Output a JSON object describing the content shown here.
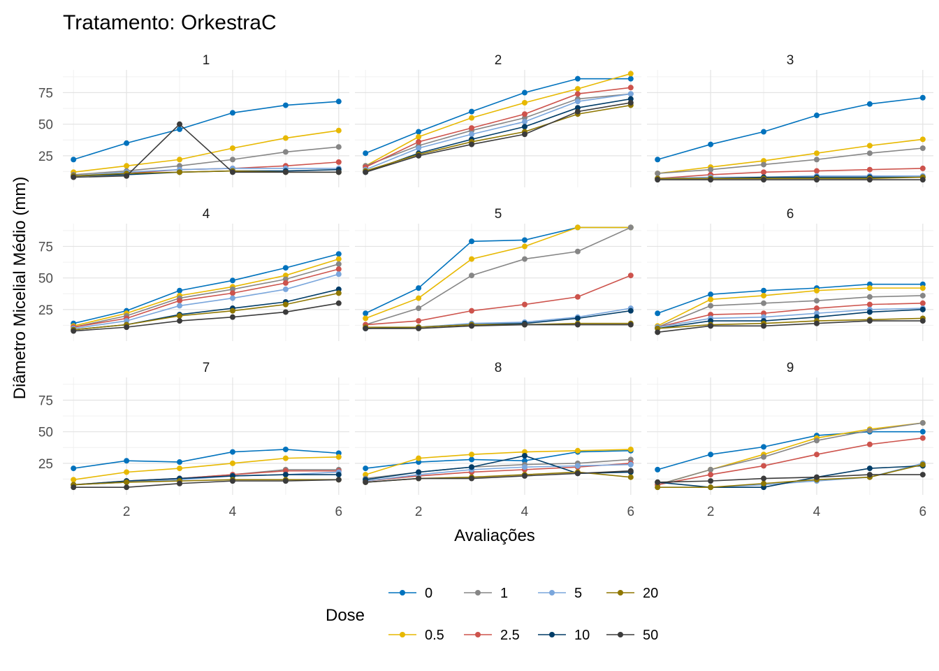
{
  "chart_data": {
    "type": "line",
    "title": "Tratamento: OrkestraC",
    "xlabel": "Avaliações",
    "ylabel": "Diâmetro Micelial Médio (mm)",
    "xlim": [
      0.8,
      6.2
    ],
    "ylim": [
      0,
      93
    ],
    "x_ticks": [
      2,
      4,
      6
    ],
    "y_ticks": [
      25,
      50,
      75
    ],
    "grid": true,
    "legend": {
      "title": "Dose",
      "position": "bottom",
      "entries": [
        "0",
        "0.5",
        "1",
        "2.5",
        "5",
        "10",
        "20",
        "50"
      ]
    },
    "colors": {
      "0": "#0072BD",
      "0.5": "#E7B800",
      "1": "#868686",
      "2.5": "#CD534C",
      "5": "#7AA6DC",
      "10": "#003C67",
      "20": "#8F7700",
      "50": "#3B3B3B"
    },
    "x": [
      1,
      2,
      3,
      4,
      5,
      6
    ],
    "panels": [
      {
        "label": "1",
        "series": [
          {
            "dose": "0",
            "values": [
              22,
              35,
              46,
              59,
              65,
              68
            ]
          },
          {
            "dose": "0.5",
            "values": [
              12,
              17,
              22,
              31,
              39,
              45
            ]
          },
          {
            "dose": "1",
            "values": [
              10,
              13,
              17,
              22,
              28,
              32
            ]
          },
          {
            "dose": "2.5",
            "values": [
              9,
              11,
              14,
              15,
              17,
              20
            ]
          },
          {
            "dose": "5",
            "values": [
              9,
              12,
              14,
              15,
              15,
              15
            ]
          },
          {
            "dose": "10",
            "values": [
              9,
              10,
              12,
              13,
              13,
              14
            ]
          },
          {
            "dose": "20",
            "values": [
              9,
              11,
              12,
              13,
              12,
              12
            ]
          },
          {
            "dose": "50",
            "values": [
              8,
              9,
              50,
              12,
              12,
              12
            ]
          }
        ]
      },
      {
        "label": "2",
        "series": [
          {
            "dose": "0",
            "values": [
              27,
              44,
              60,
              75,
              86,
              86
            ]
          },
          {
            "dose": "0.5",
            "values": [
              17,
              40,
              55,
              67,
              78,
              90
            ]
          },
          {
            "dose": "1",
            "values": [
              17,
              33,
              45,
              55,
              70,
              74
            ]
          },
          {
            "dose": "2.5",
            "values": [
              16,
              36,
              47,
              58,
              74,
              79
            ]
          },
          {
            "dose": "5",
            "values": [
              14,
              31,
              42,
              52,
              68,
              74
            ]
          },
          {
            "dose": "10",
            "values": [
              12,
              27,
              38,
              48,
              63,
              70
            ]
          },
          {
            "dose": "20",
            "values": [
              13,
              26,
              36,
              44,
              58,
              65
            ]
          },
          {
            "dose": "50",
            "values": [
              12,
              25,
              34,
              42,
              60,
              67
            ]
          }
        ]
      },
      {
        "label": "3",
        "series": [
          {
            "dose": "0",
            "values": [
              22,
              34,
              44,
              57,
              66,
              71
            ]
          },
          {
            "dose": "0.5",
            "values": [
              11,
              16,
              21,
              27,
              33,
              38
            ]
          },
          {
            "dose": "1",
            "values": [
              11,
              14,
              18,
              22,
              27,
              31
            ]
          },
          {
            "dose": "2.5",
            "values": [
              7,
              10,
              12,
              13,
              14,
              15
            ]
          },
          {
            "dose": "5",
            "values": [
              7,
              8,
              8,
              9,
              9,
              9
            ]
          },
          {
            "dose": "10",
            "values": [
              7,
              7,
              8,
              8,
              8,
              8
            ]
          },
          {
            "dose": "20",
            "values": [
              7,
              7,
              7,
              7,
              7,
              8
            ]
          },
          {
            "dose": "50",
            "values": [
              6,
              6,
              6,
              6,
              6,
              6
            ]
          }
        ]
      },
      {
        "label": "4",
        "series": [
          {
            "dose": "0",
            "values": [
              14,
              24,
              40,
              48,
              58,
              69
            ]
          },
          {
            "dose": "0.5",
            "values": [
              12,
              22,
              36,
              43,
              52,
              65
            ]
          },
          {
            "dose": "1",
            "values": [
              11,
              20,
              34,
              41,
              49,
              61
            ]
          },
          {
            "dose": "2.5",
            "values": [
              11,
              18,
              32,
              38,
              46,
              57
            ]
          },
          {
            "dose": "5",
            "values": [
              10,
              16,
              28,
              34,
              41,
              53
            ]
          },
          {
            "dose": "10",
            "values": [
              9,
              13,
              21,
              26,
              31,
              41
            ]
          },
          {
            "dose": "20",
            "values": [
              9,
              13,
              20,
              24,
              29,
              38
            ]
          },
          {
            "dose": "50",
            "values": [
              8,
              11,
              16,
              19,
              23,
              30
            ]
          }
        ]
      },
      {
        "label": "5",
        "series": [
          {
            "dose": "0",
            "values": [
              22,
              42,
              79,
              80,
              90,
              90
            ]
          },
          {
            "dose": "0.5",
            "values": [
              18,
              34,
              65,
              75,
              90,
              90
            ]
          },
          {
            "dose": "1",
            "values": [
              13,
              26,
              52,
              65,
              71,
              90
            ]
          },
          {
            "dose": "2.5",
            "values": [
              13,
              16,
              24,
              29,
              35,
              52
            ]
          },
          {
            "dose": "5",
            "values": [
              10,
              11,
              14,
              15,
              19,
              26
            ]
          },
          {
            "dose": "10",
            "values": [
              10,
              11,
              13,
              14,
              18,
              24
            ]
          },
          {
            "dose": "20",
            "values": [
              11,
              11,
              13,
              13,
              14,
              14
            ]
          },
          {
            "dose": "50",
            "values": [
              10,
              10,
              12,
              13,
              13,
              13
            ]
          }
        ]
      },
      {
        "label": "6",
        "series": [
          {
            "dose": "0",
            "values": [
              22,
              37,
              40,
              42,
              45,
              45
            ]
          },
          {
            "dose": "0.5",
            "values": [
              12,
              33,
              36,
              40,
              42,
              42
            ]
          },
          {
            "dose": "1",
            "values": [
              11,
              28,
              30,
              32,
              35,
              36
            ]
          },
          {
            "dose": "2.5",
            "values": [
              11,
              21,
              22,
              26,
              29,
              30
            ]
          },
          {
            "dose": "5",
            "values": [
              11,
              18,
              19,
              22,
              25,
              26
            ]
          },
          {
            "dose": "10",
            "values": [
              10,
              16,
              16,
              19,
              23,
              25
            ]
          },
          {
            "dose": "20",
            "values": [
              10,
              13,
              14,
              16,
              17,
              18
            ]
          },
          {
            "dose": "50",
            "values": [
              7,
              12,
              12,
              14,
              16,
              16
            ]
          }
        ]
      },
      {
        "label": "7",
        "series": [
          {
            "dose": "0",
            "values": [
              21,
              27,
              26,
              34,
              36,
              33
            ]
          },
          {
            "dose": "0.5",
            "values": [
              12,
              18,
              21,
              25,
              29,
              30
            ]
          },
          {
            "dose": "1",
            "values": [
              8,
              10,
              13,
              16,
              20,
              20
            ]
          },
          {
            "dose": "2.5",
            "values": [
              8,
              11,
              13,
              16,
              19,
              19
            ]
          },
          {
            "dose": "5",
            "values": [
              8,
              10,
              12,
              15,
              16,
              18
            ]
          },
          {
            "dose": "10",
            "values": [
              8,
              11,
              13,
              15,
              16,
              16
            ]
          },
          {
            "dose": "20",
            "values": [
              8,
              10,
              11,
              12,
              12,
              12
            ]
          },
          {
            "dose": "50",
            "values": [
              6,
              6,
              9,
              11,
              11,
              12
            ]
          }
        ]
      },
      {
        "label": "8",
        "series": [
          {
            "dose": "0",
            "values": [
              21,
              26,
              28,
              27,
              34,
              35
            ]
          },
          {
            "dose": "0.5",
            "values": [
              16,
              29,
              32,
              34,
              35,
              36
            ]
          },
          {
            "dose": "1",
            "values": [
              13,
              18,
              22,
              24,
              25,
              28
            ]
          },
          {
            "dose": "2.5",
            "values": [
              11,
              15,
              18,
              20,
              22,
              25
            ]
          },
          {
            "dose": "5",
            "values": [
              11,
              16,
              20,
              22,
              23,
              24
            ]
          },
          {
            "dose": "10",
            "values": [
              12,
              18,
              22,
              31,
              17,
              18
            ]
          },
          {
            "dose": "20",
            "values": [
              10,
              13,
              14,
              16,
              18,
              14
            ]
          },
          {
            "dose": "50",
            "values": [
              10,
              13,
              13,
              15,
              17,
              19
            ]
          }
        ]
      },
      {
        "label": "9",
        "series": [
          {
            "dose": "0",
            "values": [
              20,
              32,
              38,
              47,
              50,
              50
            ]
          },
          {
            "dose": "0.5",
            "values": [
              8,
              20,
              32,
              45,
              52,
              57
            ]
          },
          {
            "dose": "1",
            "values": [
              8,
              20,
              30,
              43,
              51,
              57
            ]
          },
          {
            "dose": "2.5",
            "values": [
              8,
              16,
              23,
              32,
              40,
              45
            ]
          },
          {
            "dose": "5",
            "values": [
              6,
              6,
              8,
              11,
              14,
              25
            ]
          },
          {
            "dose": "10",
            "values": [
              10,
              6,
              6,
              14,
              21,
              23
            ]
          },
          {
            "dose": "20",
            "values": [
              6,
              6,
              9,
              12,
              14,
              24
            ]
          },
          {
            "dose": "50",
            "values": [
              10,
              11,
              13,
              14,
              16,
              16
            ]
          }
        ]
      }
    ]
  }
}
